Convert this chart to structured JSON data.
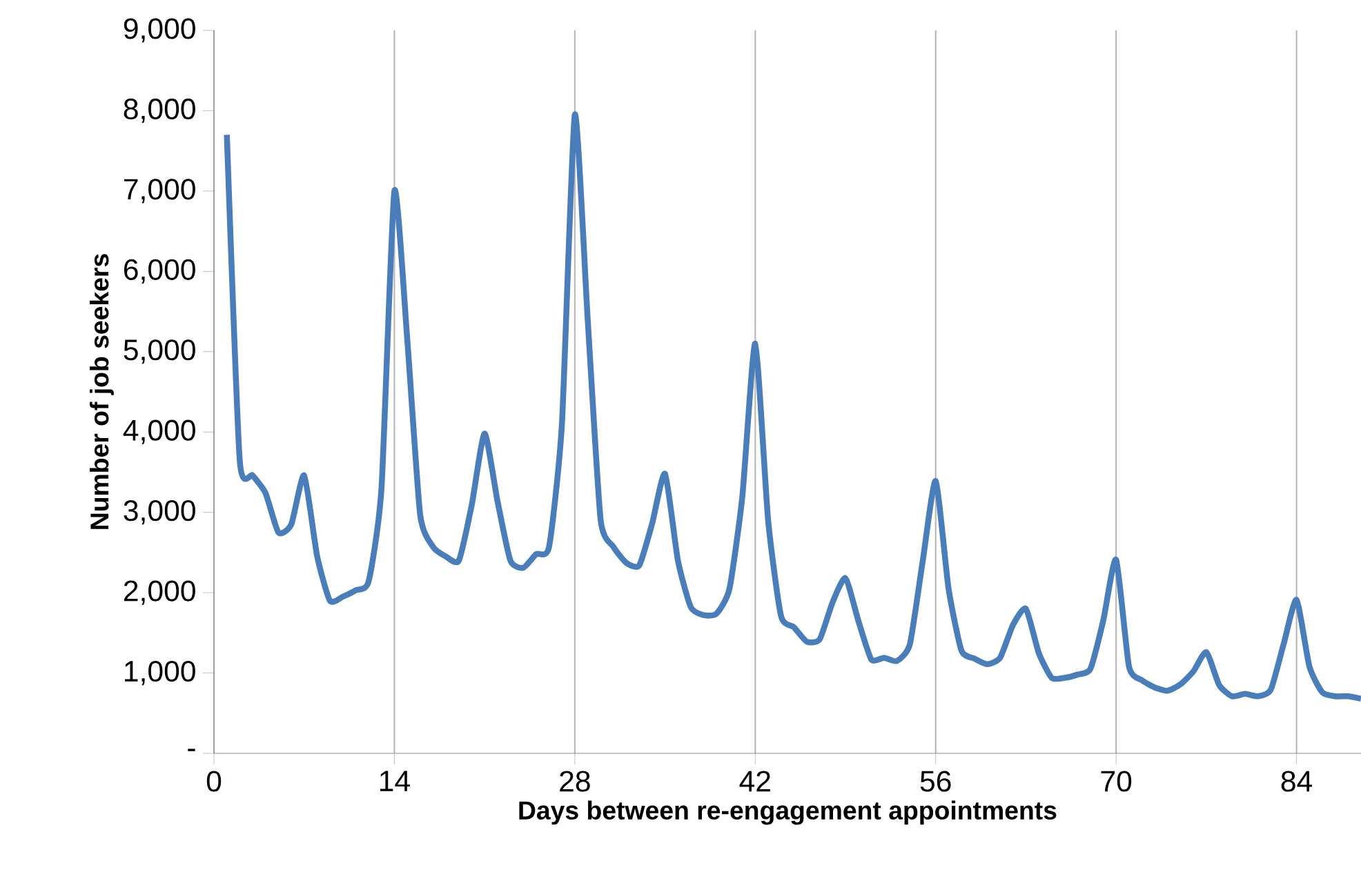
{
  "chart_data": {
    "type": "line",
    "xlabel": "Days between re-engagement appointments",
    "ylabel": "Number of job seekers",
    "x": [
      1,
      2,
      3,
      4,
      5,
      6,
      7,
      8,
      9,
      10,
      11,
      12,
      13,
      14,
      15,
      16,
      17,
      18,
      19,
      20,
      21,
      22,
      23,
      24,
      25,
      26,
      27,
      28,
      29,
      30,
      31,
      32,
      33,
      34,
      35,
      36,
      37,
      38,
      39,
      40,
      41,
      42,
      43,
      44,
      45,
      46,
      47,
      48,
      49,
      50,
      51,
      52,
      53,
      54,
      55,
      56,
      57,
      58,
      59,
      60,
      61,
      62,
      63,
      64,
      65,
      66,
      67,
      68,
      69,
      70,
      71,
      72,
      73,
      74,
      75,
      76,
      77,
      78,
      79,
      80,
      81,
      82,
      83,
      84,
      85,
      86,
      87,
      88,
      89
    ],
    "series": [
      {
        "color": "#4a7ebb",
        "values": [
          7700,
          3650,
          3460,
          3240,
          2750,
          2850,
          3460,
          2460,
          1900,
          1950,
          2030,
          2140,
          3300,
          7000,
          5150,
          2970,
          2570,
          2450,
          2400,
          3090,
          3980,
          3140,
          2400,
          2310,
          2480,
          2570,
          4100,
          7950,
          5400,
          2910,
          2570,
          2370,
          2340,
          2860,
          3480,
          2400,
          1820,
          1720,
          1740,
          2050,
          3200,
          5100,
          2900,
          1710,
          1570,
          1390,
          1420,
          1880,
          2180,
          1650,
          1170,
          1190,
          1150,
          1360,
          2400,
          3390,
          2050,
          1280,
          1180,
          1110,
          1190,
          1600,
          1800,
          1250,
          940,
          940,
          980,
          1050,
          1650,
          2410,
          1080,
          910,
          820,
          780,
          860,
          1020,
          1260,
          850,
          710,
          740,
          710,
          790,
          1360,
          1910,
          1080,
          760,
          710,
          710,
          680
        ]
      }
    ],
    "xlim": [
      0,
      89
    ],
    "xticks": [
      0,
      14,
      28,
      42,
      56,
      70,
      84
    ],
    "ylim": [
      0,
      9000
    ],
    "yticks": [
      {
        "value": 0,
        "label": "-"
      },
      {
        "value": 1000,
        "label": "1,000"
      },
      {
        "value": 2000,
        "label": "2,000"
      },
      {
        "value": 3000,
        "label": "3,000"
      },
      {
        "value": 4000,
        "label": "4,000"
      },
      {
        "value": 5000,
        "label": "5,000"
      },
      {
        "value": 6000,
        "label": "6,000"
      },
      {
        "value": 7000,
        "label": "7,000"
      },
      {
        "value": 8000,
        "label": "8,000"
      },
      {
        "value": 9000,
        "label": "9,000"
      }
    ],
    "grid": "x",
    "marker": "none",
    "line_style": "solid"
  }
}
